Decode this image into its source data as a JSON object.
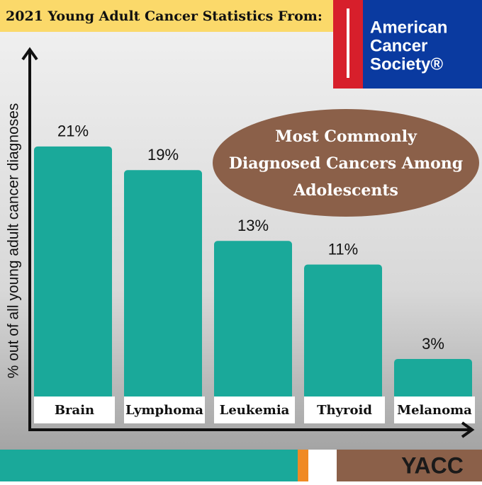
{
  "chart_data": {
    "type": "bar",
    "title": "2021 Young Adult Cancer Statistics From:",
    "logo": [
      "American",
      "Cancer",
      "Society®"
    ],
    "annotation": [
      "Most Commonly",
      "Diagnosed Cancers Among",
      "Adolescents"
    ],
    "y_label": "% out of all young adult cancer diagnoses",
    "categories": [
      "Brain",
      "Lymphoma",
      "Leukemia",
      "Thyroid",
      "Melanoma"
    ],
    "values": [
      21,
      19,
      13,
      11,
      3
    ],
    "value_labels": [
      "21%",
      "19%",
      "13%",
      "11%",
      "3%"
    ],
    "color": "#1aa99a",
    "footer_logo": "YACC"
  }
}
